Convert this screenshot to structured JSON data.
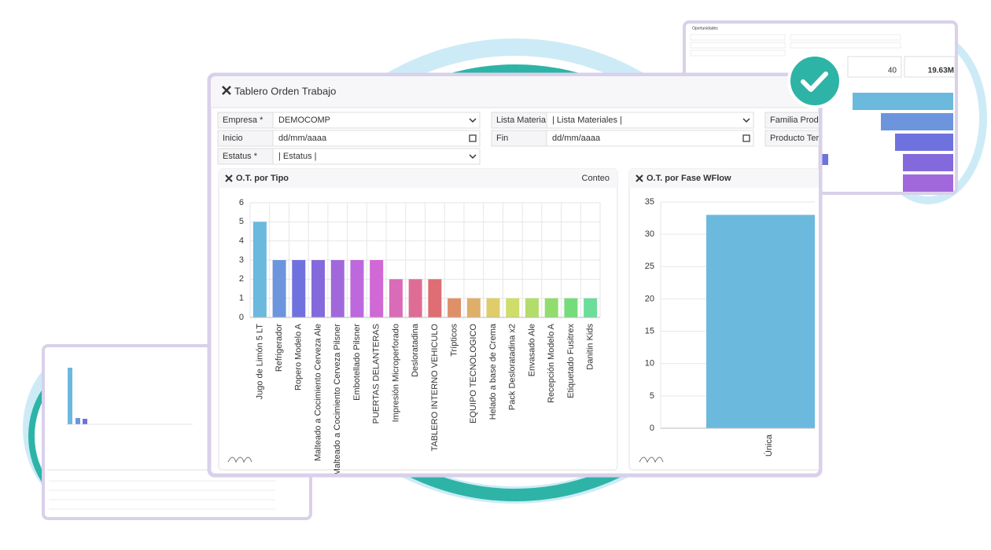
{
  "app": {
    "title": "Tablero Orden Trabajo",
    "form": [
      {
        "label": "Empresa *",
        "value": "DEMOCOMP",
        "control": "select"
      },
      {
        "label": "Lista Materiales. *",
        "value": "| Lista Materiales |",
        "control": "select"
      },
      {
        "label": "Familia Producto.",
        "value": "",
        "control": "select"
      },
      {
        "label": "Inicio",
        "value": "dd/mm/aaaa",
        "control": "date"
      },
      {
        "label": "Fin",
        "value": "dd/mm/aaaa",
        "control": "date"
      },
      {
        "label": "Producto Term.",
        "value": "",
        "control": "select"
      },
      {
        "label": "Estatus *",
        "value": "| Estatus |",
        "control": "select"
      }
    ]
  },
  "background": {
    "card_title": "Oportunidades",
    "kpi_count": 40,
    "kpi_total": "19.63M"
  },
  "chart_data": [
    {
      "type": "bar",
      "title": "O.T. por Tipo",
      "header_right": "Conteo",
      "categories": [
        "Jugo de Limón 5 LT",
        "Refrigerador",
        "Ropero Modelo A",
        "Malteado a Cocimiento Cerveza Ale",
        "Malteado a Cocimiento Cerveza Pilsner",
        "Embotellado Pilsner",
        "PUERTAS DELANTERAS",
        "Impresión Microperforado",
        "Desloratadina",
        "TABLERO INTERNO VEHICULO",
        "Trípticos",
        "EQUIPO TECNOLOGICO",
        "Helado a base de Crema",
        "Pack Desloratadina x2",
        "Envasado Ale",
        "Recepción Modelo A",
        "Etiquetado Fusitrex",
        "Danitin Kids"
      ],
      "values": [
        5,
        3,
        3,
        3,
        3,
        3,
        3,
        2,
        2,
        2,
        1,
        1,
        1,
        1,
        1,
        1,
        1,
        1
      ],
      "colors": [
        "#6bb9dd",
        "#6d95de",
        "#6f72de",
        "#8469dc",
        "#a168dc",
        "#bd68dc",
        "#d068d6",
        "#d96bb8",
        "#de6d95",
        "#de6d74",
        "#df9068",
        "#dfae68",
        "#dfcd6a",
        "#cfdd6b",
        "#b3dd6b",
        "#90dd6d",
        "#74dd79",
        "#6ddd9a"
      ],
      "ylim": [
        0,
        6
      ],
      "yticks": [
        0,
        1,
        2,
        3,
        4,
        5,
        6
      ],
      "grid": true
    },
    {
      "type": "bar",
      "title": "O.T. por Fase WFlow",
      "categories": [
        "Única"
      ],
      "values": [
        33
      ],
      "colors": [
        "#6bb9dd"
      ],
      "ylim": [
        0,
        35
      ],
      "yticks": [
        0,
        5,
        10,
        15,
        20,
        25,
        30,
        35
      ],
      "grid": true
    }
  ]
}
